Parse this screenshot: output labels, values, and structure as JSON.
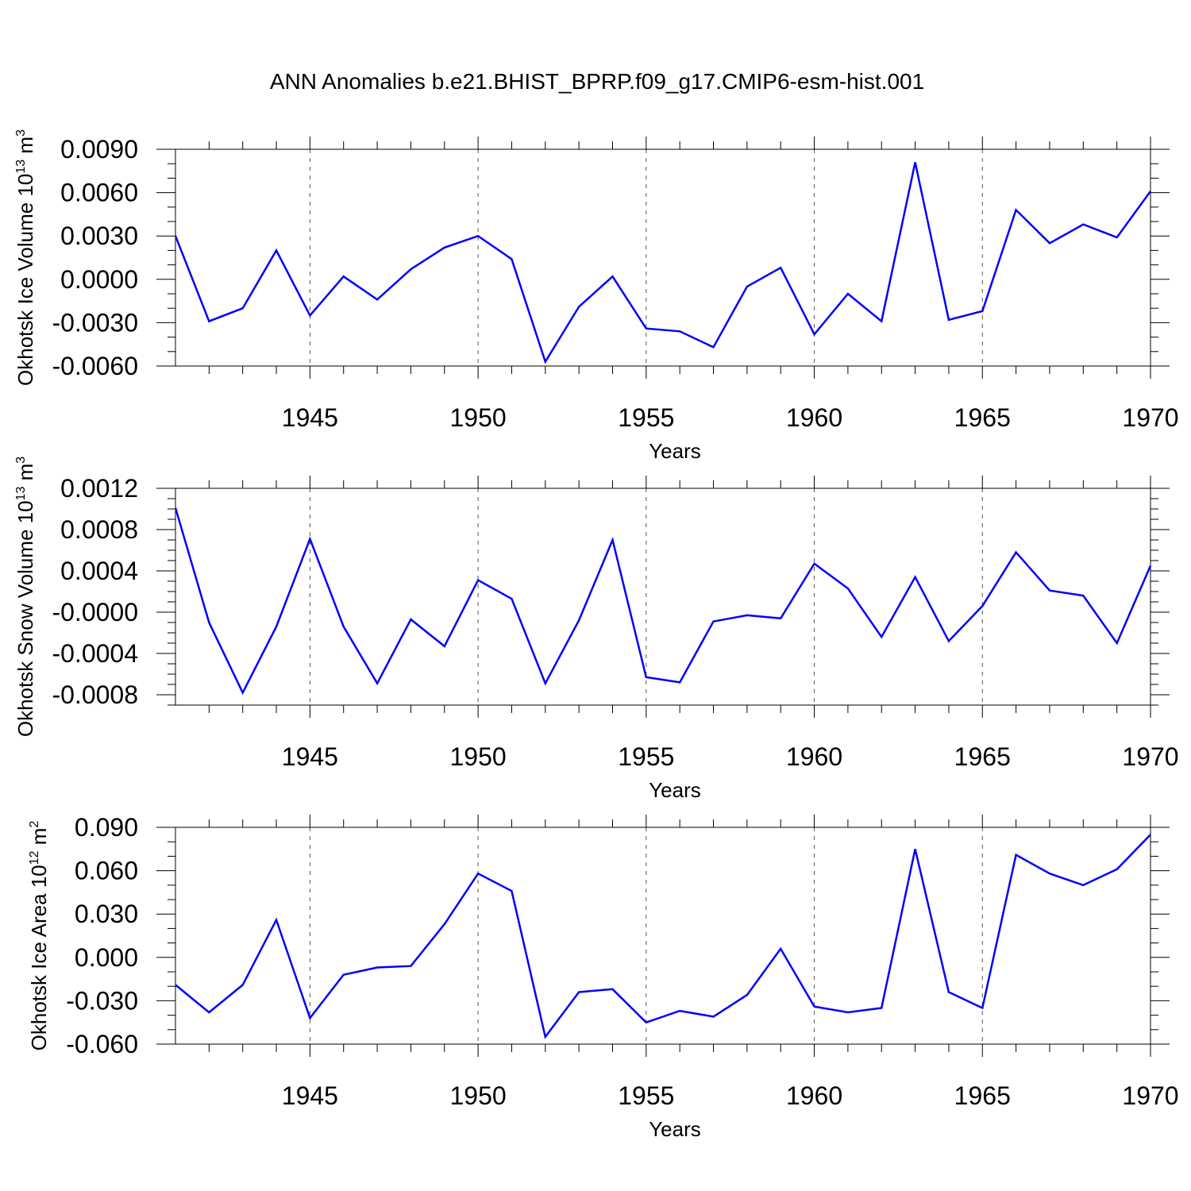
{
  "title": "ANN Anomalies b.e21.BHIST_BPRP.f09_g17.CMIP6-esm-hist.001",
  "line_color": "#0000ff",
  "chart_data": [
    {
      "type": "line",
      "ylabel_main": "Okhotsk Ice Volume 10",
      "ylabel_exp": "13",
      "ylabel_unit": " m",
      "ylabel_unit_exp": "3",
      "xlabel": "Years",
      "xlim": [
        1941,
        1970
      ],
      "ylim": [
        -0.006,
        0.009
      ],
      "yticks": [
        -0.006,
        -0.003,
        0.0,
        0.003,
        0.006,
        0.009
      ],
      "ytick_labels": [
        "-0.0060",
        "-0.0030",
        "0.0000",
        "0.0030",
        "0.0060",
        "0.0090"
      ],
      "yminor_step": 0.001,
      "xticks": [
        1945,
        1950,
        1955,
        1960,
        1965,
        1970
      ],
      "xtick_labels": [
        "1945",
        "1950",
        "1955",
        "1960",
        "1965",
        "1970"
      ],
      "grid": "dashed vertical at major x ticks",
      "series": [
        {
          "name": "Okhotsk Ice Volume",
          "x": [
            1941,
            1942,
            1943,
            1944,
            1945,
            1946,
            1947,
            1948,
            1949,
            1950,
            1951,
            1952,
            1953,
            1954,
            1955,
            1956,
            1957,
            1958,
            1959,
            1960,
            1961,
            1962,
            1963,
            1964,
            1965,
            1966,
            1967,
            1968,
            1969,
            1970
          ],
          "values": [
            0.003,
            -0.0029,
            -0.002,
            0.002,
            -0.0025,
            0.0002,
            -0.0014,
            0.0007,
            0.0022,
            0.003,
            0.0014,
            -0.0057,
            -0.0019,
            0.0002,
            -0.0034,
            -0.0036,
            -0.0047,
            -0.0005,
            0.0008,
            -0.0038,
            -0.001,
            -0.0029,
            0.0081,
            -0.0028,
            -0.0022,
            0.0048,
            0.0025,
            0.0038,
            0.0029,
            0.0061
          ]
        }
      ]
    },
    {
      "type": "line",
      "ylabel_main": "Okhotsk Snow Volume 10",
      "ylabel_exp": "13",
      "ylabel_unit": " m",
      "ylabel_unit_exp": "3",
      "xlabel": "Years",
      "xlim": [
        1941,
        1970
      ],
      "ylim": [
        -0.0009,
        0.0012
      ],
      "yticks": [
        -0.0008,
        -0.0004,
        0.0,
        0.0004,
        0.0008,
        0.0012
      ],
      "ytick_labels": [
        "-0.0008",
        "-0.0004",
        "-0.0000",
        "0.0004",
        "0.0008",
        "0.0012"
      ],
      "yminor_step": 0.0001,
      "xticks": [
        1945,
        1950,
        1955,
        1960,
        1965,
        1970
      ],
      "xtick_labels": [
        "1945",
        "1950",
        "1955",
        "1960",
        "1965",
        "1970"
      ],
      "grid": "dashed vertical at major x ticks",
      "series": [
        {
          "name": "Okhotsk Snow Volume",
          "x": [
            1941,
            1942,
            1943,
            1944,
            1945,
            1946,
            1947,
            1948,
            1949,
            1950,
            1951,
            1952,
            1953,
            1954,
            1955,
            1956,
            1957,
            1958,
            1959,
            1960,
            1961,
            1962,
            1963,
            1964,
            1965,
            1966,
            1967,
            1968,
            1969,
            1970
          ],
          "values": [
            0.00101,
            -0.0001,
            -0.00078,
            -0.00014,
            0.00071,
            -0.00014,
            -0.00069,
            -7e-05,
            -0.00033,
            0.00031,
            0.00013,
            -0.00069,
            -8e-05,
            0.0007,
            -0.00063,
            -0.00068,
            -9e-05,
            -3e-05,
            -6e-05,
            0.00047,
            0.00023,
            -0.00024,
            0.00034,
            -0.00028,
            6e-05,
            0.00058,
            0.00021,
            0.00016,
            -0.0003,
            0.00045
          ]
        }
      ]
    },
    {
      "type": "line",
      "ylabel_main": "Okhotsk Ice Area 10",
      "ylabel_exp": "12",
      "ylabel_unit": " m",
      "ylabel_unit_exp": "2",
      "xlabel": "Years",
      "xlim": [
        1941,
        1970
      ],
      "ylim": [
        -0.06,
        0.09
      ],
      "yticks": [
        -0.06,
        -0.03,
        0.0,
        0.03,
        0.06,
        0.09
      ],
      "ytick_labels": [
        "-0.060",
        "-0.030",
        "0.000",
        "0.030",
        "0.060",
        "0.090"
      ],
      "yminor_step": 0.01,
      "xticks": [
        1945,
        1950,
        1955,
        1960,
        1965,
        1970
      ],
      "xtick_labels": [
        "1945",
        "1950",
        "1955",
        "1960",
        "1965",
        "1970"
      ],
      "grid": "dashed vertical at major x ticks",
      "series": [
        {
          "name": "Okhotsk Ice Area",
          "x": [
            1941,
            1942,
            1943,
            1944,
            1945,
            1946,
            1947,
            1948,
            1949,
            1950,
            1951,
            1952,
            1953,
            1954,
            1955,
            1956,
            1957,
            1958,
            1959,
            1960,
            1961,
            1962,
            1963,
            1964,
            1965,
            1966,
            1967,
            1968,
            1969,
            1970
          ],
          "values": [
            -0.019,
            -0.038,
            -0.019,
            0.026,
            -0.042,
            -0.012,
            -0.007,
            -0.006,
            0.023,
            0.058,
            0.046,
            -0.055,
            -0.024,
            -0.022,
            -0.045,
            -0.037,
            -0.041,
            -0.026,
            0.006,
            -0.034,
            -0.038,
            -0.035,
            0.075,
            -0.024,
            -0.035,
            0.071,
            0.058,
            0.05,
            0.061,
            0.085
          ]
        }
      ]
    }
  ]
}
